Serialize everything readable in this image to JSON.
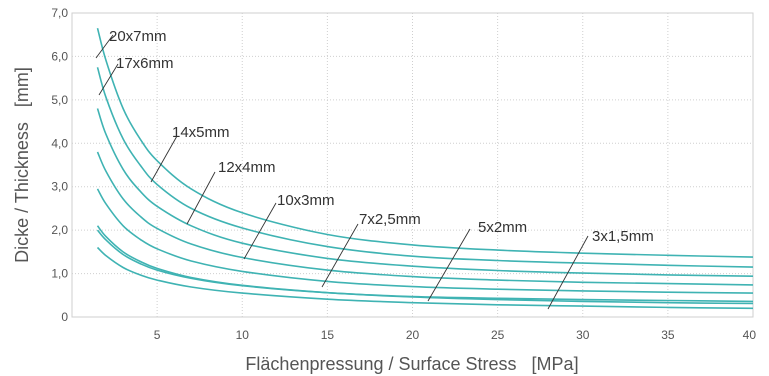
{
  "chart_data": {
    "type": "line",
    "xlabel": "Flächenpressung / Surface Stress   [MPa]",
    "ylabel": "Dicke / Thickness   [mm]",
    "xlim": [
      0,
      40
    ],
    "ylim": [
      0,
      7
    ],
    "x_ticks": [
      5,
      10,
      15,
      20,
      25,
      30,
      35,
      40
    ],
    "x_tick_labels": [
      "5",
      "10",
      "15",
      "20",
      "25",
      "30",
      "35",
      "40"
    ],
    "y_ticks": [
      0,
      1,
      2,
      3,
      4,
      5,
      6,
      7
    ],
    "y_tick_labels": [
      "0",
      "1,0",
      "2,0",
      "3,0",
      "4,0",
      "5,0",
      "6,0",
      "7,0"
    ],
    "grid": true,
    "line_color": "#3fb3b3",
    "series": [
      {
        "name": "20x7mm",
        "x": [
          1.5,
          2,
          3,
          4,
          5,
          7,
          10,
          15,
          20,
          25,
          30,
          35,
          40
        ],
        "values": [
          6.65,
          5.9,
          4.8,
          4.1,
          3.6,
          2.95,
          2.4,
          1.9,
          1.66,
          1.54,
          1.47,
          1.42,
          1.38
        ]
      },
      {
        "name": "17x6mm",
        "x": [
          1.5,
          2,
          3,
          4,
          5,
          7,
          10,
          15,
          20,
          25,
          30,
          35,
          40
        ],
        "values": [
          5.75,
          5.05,
          4.1,
          3.5,
          3.05,
          2.5,
          2.05,
          1.62,
          1.4,
          1.3,
          1.24,
          1.19,
          1.15
        ]
      },
      {
        "name": "14x5mm",
        "x": [
          1.5,
          2,
          3,
          4,
          5,
          7,
          10,
          15,
          20,
          25,
          30,
          35,
          40
        ],
        "values": [
          4.8,
          4.2,
          3.4,
          2.9,
          2.55,
          2.1,
          1.7,
          1.35,
          1.17,
          1.07,
          1.01,
          0.97,
          0.94
        ]
      },
      {
        "name": "12x4mm",
        "x": [
          1.5,
          2,
          3,
          4,
          5,
          7,
          10,
          15,
          20,
          25,
          30,
          35,
          40
        ],
        "values": [
          3.8,
          3.35,
          2.72,
          2.32,
          2.04,
          1.68,
          1.37,
          1.08,
          0.93,
          0.85,
          0.8,
          0.77,
          0.74
        ]
      },
      {
        "name": "10x3mm",
        "x": [
          1.5,
          2,
          3,
          4,
          5,
          7,
          10,
          15,
          20,
          25,
          30,
          35,
          40
        ],
        "values": [
          2.95,
          2.6,
          2.1,
          1.79,
          1.57,
          1.29,
          1.05,
          0.82,
          0.7,
          0.64,
          0.6,
          0.57,
          0.55
        ]
      },
      {
        "name": "7x2,5mm",
        "x": [
          1.5,
          2,
          3,
          4,
          5,
          7,
          10,
          15,
          20,
          25,
          30,
          35,
          40
        ],
        "values": [
          2.0,
          1.77,
          1.44,
          1.23,
          1.08,
          0.89,
          0.72,
          0.56,
          0.47,
          0.43,
          0.4,
          0.38,
          0.36
        ]
      },
      {
        "name": "5x2mm",
        "x": [
          1.5,
          2,
          3,
          4,
          5,
          7,
          10,
          15,
          20,
          25,
          30,
          35,
          40
        ],
        "values": [
          2.1,
          1.85,
          1.5,
          1.28,
          1.12,
          0.91,
          0.73,
          0.56,
          0.46,
          0.4,
          0.36,
          0.33,
          0.31
        ]
      },
      {
        "name": "3x1,5mm",
        "x": [
          1.5,
          2,
          3,
          4,
          5,
          7,
          10,
          15,
          20,
          25,
          30,
          35,
          40
        ],
        "values": [
          1.6,
          1.41,
          1.14,
          0.97,
          0.85,
          0.69,
          0.55,
          0.41,
          0.33,
          0.28,
          0.25,
          0.22,
          0.2
        ]
      }
    ]
  }
}
